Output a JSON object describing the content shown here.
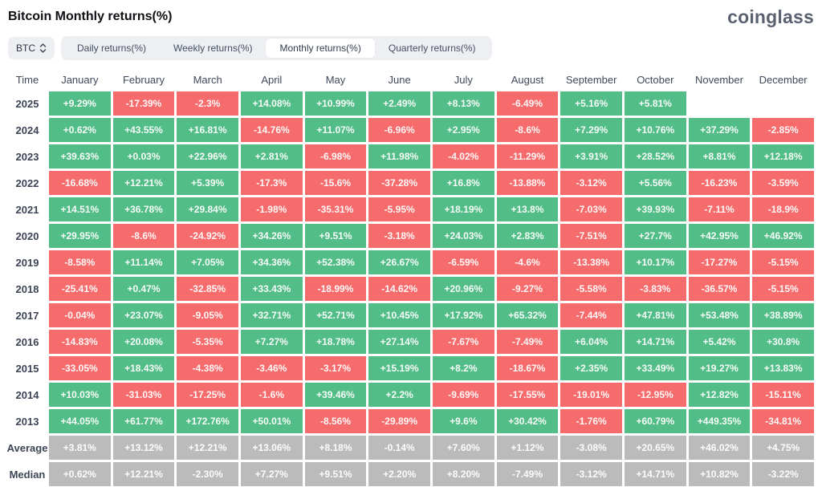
{
  "header": {
    "title": "Bitcoin Monthly returns(%)",
    "logo": "coinglass"
  },
  "controls": {
    "symbol_select": {
      "value": "BTC",
      "icon": "sort-updown-icon"
    },
    "tabs": [
      {
        "label": "Daily returns(%)",
        "active": false
      },
      {
        "label": "Weekly returns(%)",
        "active": false
      },
      {
        "label": "Monthly returns(%)",
        "active": true
      },
      {
        "label": "Quarterly returns(%)",
        "active": false
      }
    ]
  },
  "theme": {
    "positive": "#52BD87",
    "negative": "#F66C6C",
    "neutral": "#BBBBBB",
    "cell_text": "#FFFFFF"
  },
  "table": {
    "time_header": "Time",
    "columns": [
      "January",
      "February",
      "March",
      "April",
      "May",
      "June",
      "July",
      "August",
      "September",
      "October",
      "November",
      "December"
    ],
    "rows": [
      {
        "label": "2025",
        "kind": "year",
        "values": [
          "+9.29%",
          "-17.39%",
          "-2.3%",
          "+14.08%",
          "+10.99%",
          "+2.49%",
          "+8.13%",
          "-6.49%",
          "+5.16%",
          "+5.81%",
          "",
          ""
        ]
      },
      {
        "label": "2024",
        "kind": "year",
        "values": [
          "+0.62%",
          "+43.55%",
          "+16.81%",
          "-14.76%",
          "+11.07%",
          "-6.96%",
          "+2.95%",
          "-8.6%",
          "+7.29%",
          "+10.76%",
          "+37.29%",
          "-2.85%"
        ]
      },
      {
        "label": "2023",
        "kind": "year",
        "values": [
          "+39.63%",
          "+0.03%",
          "+22.96%",
          "+2.81%",
          "-6.98%",
          "+11.98%",
          "-4.02%",
          "-11.29%",
          "+3.91%",
          "+28.52%",
          "+8.81%",
          "+12.18%"
        ]
      },
      {
        "label": "2022",
        "kind": "year",
        "values": [
          "-16.68%",
          "+12.21%",
          "+5.39%",
          "-17.3%",
          "-15.6%",
          "-37.28%",
          "+16.8%",
          "-13.88%",
          "-3.12%",
          "+5.56%",
          "-16.23%",
          "-3.59%"
        ]
      },
      {
        "label": "2021",
        "kind": "year",
        "values": [
          "+14.51%",
          "+36.78%",
          "+29.84%",
          "-1.98%",
          "-35.31%",
          "-5.95%",
          "+18.19%",
          "+13.8%",
          "-7.03%",
          "+39.93%",
          "-7.11%",
          "-18.9%"
        ]
      },
      {
        "label": "2020",
        "kind": "year",
        "values": [
          "+29.95%",
          "-8.6%",
          "-24.92%",
          "+34.26%",
          "+9.51%",
          "-3.18%",
          "+24.03%",
          "+2.83%",
          "-7.51%",
          "+27.7%",
          "+42.95%",
          "+46.92%"
        ]
      },
      {
        "label": "2019",
        "kind": "year",
        "values": [
          "-8.58%",
          "+11.14%",
          "+7.05%",
          "+34.36%",
          "+52.38%",
          "+26.67%",
          "-6.59%",
          "-4.6%",
          "-13.38%",
          "+10.17%",
          "-17.27%",
          "-5.15%"
        ]
      },
      {
        "label": "2018",
        "kind": "year",
        "values": [
          "-25.41%",
          "+0.47%",
          "-32.85%",
          "+33.43%",
          "-18.99%",
          "-14.62%",
          "+20.96%",
          "-9.27%",
          "-5.58%",
          "-3.83%",
          "-36.57%",
          "-5.15%"
        ]
      },
      {
        "label": "2017",
        "kind": "year",
        "values": [
          "-0.04%",
          "+23.07%",
          "-9.05%",
          "+32.71%",
          "+52.71%",
          "+10.45%",
          "+17.92%",
          "+65.32%",
          "-7.44%",
          "+47.81%",
          "+53.48%",
          "+38.89%"
        ]
      },
      {
        "label": "2016",
        "kind": "year",
        "values": [
          "-14.83%",
          "+20.08%",
          "-5.35%",
          "+7.27%",
          "+18.78%",
          "+27.14%",
          "-7.67%",
          "-7.49%",
          "+6.04%",
          "+14.71%",
          "+5.42%",
          "+30.8%"
        ]
      },
      {
        "label": "2015",
        "kind": "year",
        "values": [
          "-33.05%",
          "+18.43%",
          "-4.38%",
          "-3.46%",
          "-3.17%",
          "+15.19%",
          "+8.2%",
          "-18.67%",
          "+2.35%",
          "+33.49%",
          "+19.27%",
          "+13.83%"
        ]
      },
      {
        "label": "2014",
        "kind": "year",
        "values": [
          "+10.03%",
          "-31.03%",
          "-17.25%",
          "-1.6%",
          "+39.46%",
          "+2.2%",
          "-9.69%",
          "-17.55%",
          "-19.01%",
          "-12.95%",
          "+12.82%",
          "-15.11%"
        ]
      },
      {
        "label": "2013",
        "kind": "year",
        "values": [
          "+44.05%",
          "+61.77%",
          "+172.76%",
          "+50.01%",
          "-8.56%",
          "-29.89%",
          "+9.6%",
          "+30.42%",
          "-1.76%",
          "+60.79%",
          "+449.35%",
          "-34.81%"
        ]
      },
      {
        "label": "Average",
        "kind": "summary",
        "values": [
          "+3.81%",
          "+13.12%",
          "+12.21%",
          "+13.06%",
          "+8.18%",
          "-0.14%",
          "+7.60%",
          "+1.12%",
          "-3.08%",
          "+20.65%",
          "+46.02%",
          "+4.75%"
        ]
      },
      {
        "label": "Median",
        "kind": "summary",
        "values": [
          "+0.62%",
          "+12.21%",
          "-2.30%",
          "+7.27%",
          "+9.51%",
          "+2.20%",
          "+8.20%",
          "-7.49%",
          "-3.12%",
          "+14.71%",
          "+10.82%",
          "-3.22%"
        ]
      }
    ]
  }
}
